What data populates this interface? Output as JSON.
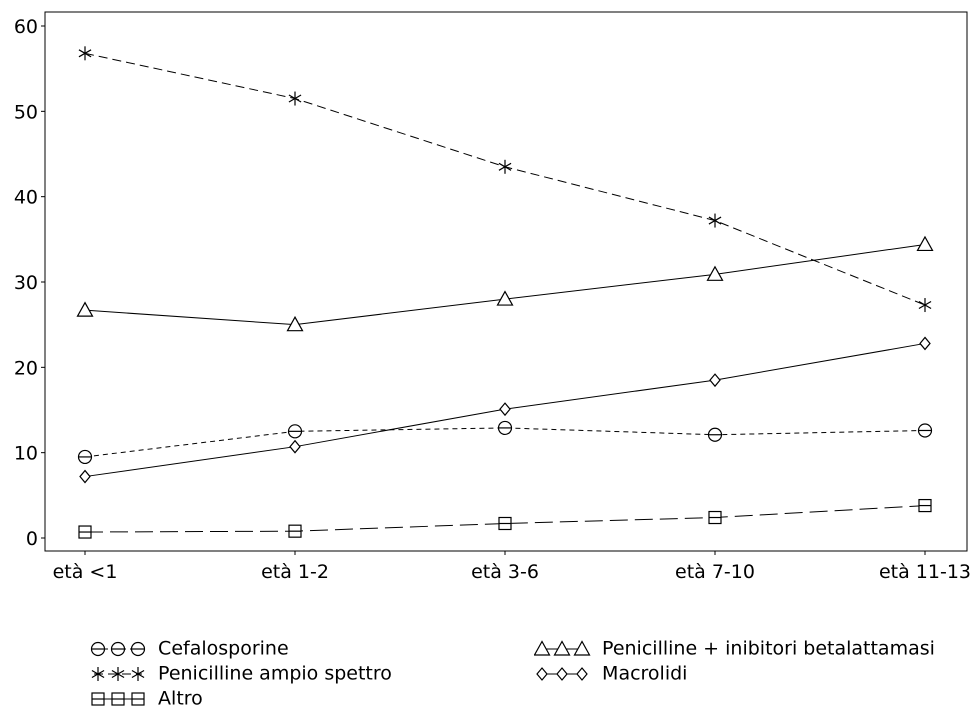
{
  "chart_data": {
    "type": "line",
    "title": "",
    "xlabel": "",
    "ylabel": "",
    "categories": [
      "età <1",
      "età 1-2",
      "età 3-6",
      "età 7-10",
      "età 11-13"
    ],
    "ylim": [
      0,
      60
    ],
    "yticks": [
      0,
      10,
      20,
      30,
      40,
      50,
      60
    ],
    "grid": false,
    "legend_position": "bottom",
    "series": [
      {
        "name": "Cefalosporine",
        "marker": "circle-dash",
        "line_style": "dashed-short",
        "color": "#000000",
        "values": [
          9.5,
          12.5,
          12.9,
          12.1,
          12.6
        ]
      },
      {
        "name": "Penicilline + inibitori betalattamasi",
        "marker": "triangle",
        "line_style": "solid",
        "color": "#000000",
        "values": [
          26.7,
          25.0,
          28.0,
          30.9,
          34.4
        ]
      },
      {
        "name": "Penicilline ampio spettro",
        "marker": "asterisk",
        "line_style": "dashed",
        "color": "#000000",
        "values": [
          56.8,
          51.5,
          43.5,
          37.2,
          27.3
        ]
      },
      {
        "name": "Macrolidi",
        "marker": "diamond",
        "line_style": "solid",
        "color": "#000000",
        "values": [
          7.2,
          10.7,
          15.1,
          18.5,
          22.8
        ]
      },
      {
        "name": "Altro",
        "marker": "square-dash",
        "line_style": "long-dash",
        "color": "#000000",
        "values": [
          0.7,
          0.8,
          1.7,
          2.4,
          3.8
        ]
      }
    ]
  }
}
